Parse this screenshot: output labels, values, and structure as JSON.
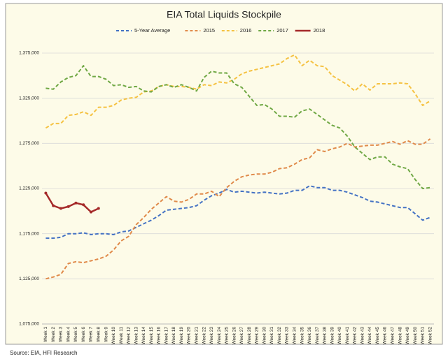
{
  "chart_data": {
    "type": "line",
    "title": "EIA Total Liquids Stockpile",
    "source": "Source: EIA, HFI Research",
    "categories": [
      "Week 1",
      "Week 2",
      "Week 3",
      "Week 4",
      "Week 5",
      "Week 6",
      "Week 7",
      "Week 8",
      "Week 9",
      "Week 10",
      "Week 11",
      "Week 12",
      "Week 13",
      "Week 14",
      "Week 15",
      "Week 16",
      "Week 17",
      "Week 18",
      "Week 19",
      "Week 20",
      "Week 21",
      "Week 22",
      "Week 23",
      "Week 24",
      "Week 25",
      "Week 26",
      "Week 27",
      "Week 28",
      "Week 29",
      "Week 30",
      "Week 31",
      "Week 32",
      "Week 33",
      "Week 34",
      "Week 35",
      "Week 36",
      "Week 37",
      "Week 38",
      "Week 39",
      "Week 40",
      "Week 41",
      "Week 42",
      "Week 43",
      "Week 44",
      "Week 45",
      "Week 46",
      "Week 47",
      "Week 48",
      "Week 49",
      "Week 50",
      "Week 51",
      "Week 52"
    ],
    "series": [
      {
        "name": "5-Year Average",
        "color": "#4472c4",
        "dashed": true,
        "values": [
          1170000,
          1170000,
          1171000,
          1175000,
          1175000,
          1176000,
          1174000,
          1175000,
          1175000,
          1174000,
          1177000,
          1178000,
          1182000,
          1186000,
          1190000,
          1195000,
          1201000,
          1202000,
          1203000,
          1204000,
          1206000,
          1212000,
          1217000,
          1220000,
          1224000,
          1221000,
          1222000,
          1221000,
          1220000,
          1221000,
          1220000,
          1219000,
          1220000,
          1223000,
          1223000,
          1228000,
          1226000,
          1226000,
          1223000,
          1223000,
          1221000,
          1218000,
          1215000,
          1211000,
          1210000,
          1208000,
          1206000,
          1204000,
          1204000,
          1197000,
          1190000,
          1193000
        ]
      },
      {
        "name": "2015",
        "color": "#e08a4a",
        "dashed": true,
        "values": [
          1125000,
          1127000,
          1130000,
          1142000,
          1144000,
          1143000,
          1145000,
          1147000,
          1150000,
          1157000,
          1167000,
          1172000,
          1185000,
          1193000,
          1202000,
          1209000,
          1216000,
          1211000,
          1210000,
          1213000,
          1219000,
          1219000,
          1222000,
          1216000,
          1226000,
          1233000,
          1238000,
          1240000,
          1241000,
          1241000,
          1243000,
          1247000,
          1248000,
          1252000,
          1257000,
          1259000,
          1268000,
          1266000,
          1269000,
          1271000,
          1275000,
          1271000,
          1272000,
          1273000,
          1273000,
          1275000,
          1277000,
          1274000,
          1278000,
          1274000,
          1274000,
          1280000
        ]
      },
      {
        "name": "2016",
        "color": "#f5c242",
        "dashed": true,
        "values": [
          1292000,
          1297000,
          1297000,
          1306000,
          1307000,
          1310000,
          1306000,
          1315000,
          1315000,
          1317000,
          1323000,
          1325000,
          1326000,
          1332000,
          1333000,
          1338000,
          1340000,
          1338000,
          1338000,
          1337000,
          1335000,
          1340000,
          1339000,
          1343000,
          1342000,
          1346000,
          1352000,
          1355000,
          1357000,
          1359000,
          1361000,
          1363000,
          1369000,
          1373000,
          1361000,
          1367000,
          1361000,
          1360000,
          1350000,
          1345000,
          1340000,
          1333000,
          1341000,
          1334000,
          1341000,
          1341000,
          1341000,
          1342000,
          1341000,
          1330000,
          1317000,
          1322000
        ]
      },
      {
        "name": "2017",
        "color": "#70a845",
        "dashed": true,
        "values": [
          1336000,
          1335000,
          1343000,
          1348000,
          1350000,
          1361000,
          1349000,
          1349000,
          1346000,
          1339000,
          1340000,
          1337000,
          1338000,
          1333000,
          1332000,
          1338000,
          1340000,
          1337000,
          1340000,
          1337000,
          1333000,
          1348000,
          1355000,
          1353000,
          1353000,
          1341000,
          1337000,
          1327000,
          1317000,
          1318000,
          1313000,
          1305000,
          1305000,
          1304000,
          1311000,
          1313000,
          1307000,
          1301000,
          1295000,
          1292000,
          1283000,
          1271000,
          1264000,
          1257000,
          1260000,
          1260000,
          1252000,
          1249000,
          1247000,
          1235000,
          1225000,
          1226000
        ]
      },
      {
        "name": "2018",
        "color": "#a52a2a",
        "dashed": false,
        "values": [
          1220000,
          1206000,
          1203000,
          1205000,
          1209000,
          1207000,
          1199000,
          1203000,
          null,
          null,
          null,
          null,
          null,
          null,
          null,
          null,
          null,
          null,
          null,
          null,
          null,
          null,
          null,
          null,
          null,
          null,
          null,
          null,
          null,
          null,
          null,
          null,
          null,
          null,
          null,
          null,
          null,
          null,
          null,
          null,
          null,
          null,
          null,
          null,
          null,
          null,
          null,
          null,
          null,
          null,
          null,
          null
        ]
      }
    ],
    "ylim": [
      1075000,
      1375000
    ],
    "yticks": [
      {
        "value": 1075000,
        "label": "1,075,000"
      },
      {
        "value": 1125000,
        "label": "1,125,000"
      },
      {
        "value": 1175000,
        "label": "1,175,000"
      },
      {
        "value": 1225000,
        "label": "1,225,000"
      },
      {
        "value": 1275000,
        "label": "1,275,000"
      },
      {
        "value": 1325000,
        "label": "1,325,000"
      },
      {
        "value": 1375000,
        "label": "1,375,000"
      }
    ],
    "grid": true,
    "legend": "top"
  }
}
